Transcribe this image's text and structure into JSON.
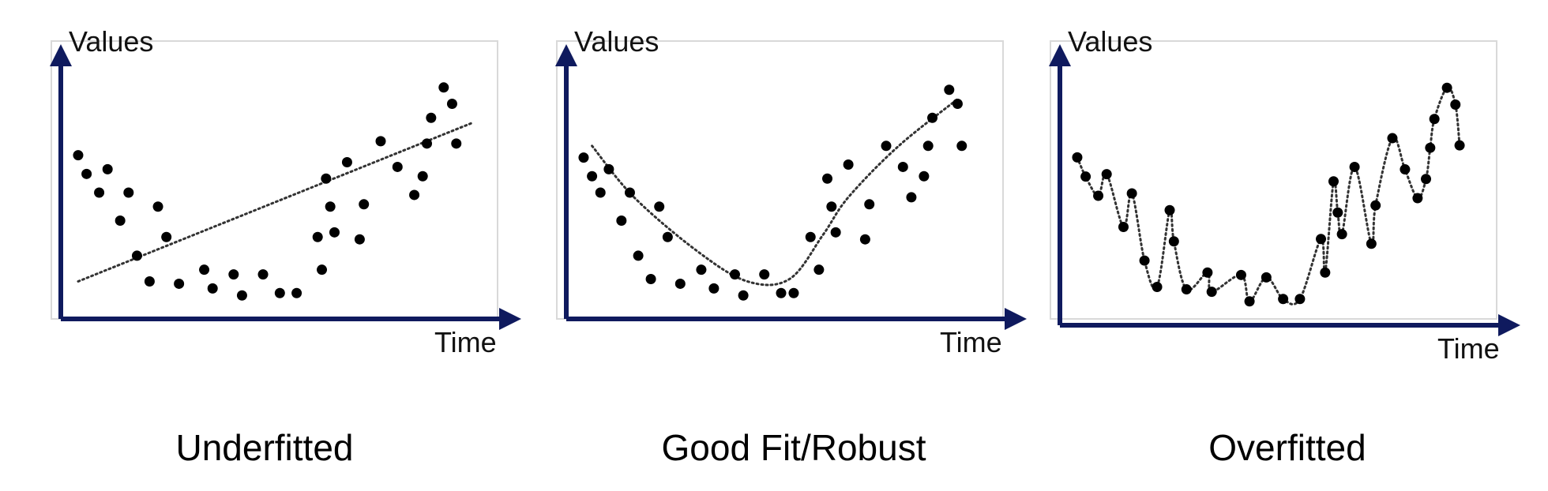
{
  "colors": {
    "axis": "#0f1a5e",
    "frame": "#d9d9d9",
    "points": "#000000",
    "fit": "#333333"
  },
  "chart_data": [
    {
      "type": "scatter",
      "caption": "Underfitted",
      "xlabel": "Time",
      "ylabel": "Values",
      "xlim": [
        0,
        100
      ],
      "ylim": [
        0,
        100
      ],
      "points": [
        [
          3,
          66
        ],
        [
          5,
          58
        ],
        [
          8,
          50
        ],
        [
          10,
          60
        ],
        [
          13,
          38
        ],
        [
          15,
          50
        ],
        [
          17,
          23
        ],
        [
          20,
          12
        ],
        [
          22,
          44
        ],
        [
          24,
          31
        ],
        [
          27,
          11
        ],
        [
          33,
          17
        ],
        [
          35,
          9
        ],
        [
          40,
          15
        ],
        [
          42,
          6
        ],
        [
          47,
          15
        ],
        [
          51,
          7
        ],
        [
          55,
          7
        ],
        [
          60,
          31
        ],
        [
          61,
          17
        ],
        [
          62,
          56
        ],
        [
          63,
          44
        ],
        [
          64,
          33
        ],
        [
          67,
          63
        ],
        [
          70,
          30
        ],
        [
          71,
          45
        ],
        [
          75,
          72
        ],
        [
          79,
          61
        ],
        [
          83,
          49
        ],
        [
          85,
          57
        ],
        [
          86,
          71
        ],
        [
          87,
          82
        ],
        [
          90,
          95
        ],
        [
          92,
          88
        ],
        [
          93,
          71
        ]
      ],
      "fit": {
        "kind": "linear",
        "x": [
          3,
          97
        ],
        "y": [
          12,
          80
        ]
      }
    },
    {
      "type": "scatter",
      "caption": "Good Fit/Robust",
      "xlabel": "Time",
      "ylabel": "Values",
      "xlim": [
        0,
        100
      ],
      "ylim": [
        0,
        100
      ],
      "points": [
        [
          3,
          65
        ],
        [
          5,
          57
        ],
        [
          7,
          50
        ],
        [
          9,
          60
        ],
        [
          12,
          38
        ],
        [
          14,
          50
        ],
        [
          16,
          23
        ],
        [
          19,
          13
        ],
        [
          21,
          44
        ],
        [
          23,
          31
        ],
        [
          26,
          11
        ],
        [
          31,
          17
        ],
        [
          34,
          9
        ],
        [
          39,
          15
        ],
        [
          41,
          6
        ],
        [
          46,
          15
        ],
        [
          50,
          7
        ],
        [
          53,
          7
        ],
        [
          57,
          31
        ],
        [
          59,
          17
        ],
        [
          61,
          56
        ],
        [
          62,
          44
        ],
        [
          63,
          33
        ],
        [
          66,
          62
        ],
        [
          70,
          30
        ],
        [
          71,
          45
        ],
        [
          75,
          70
        ],
        [
          79,
          61
        ],
        [
          81,
          48
        ],
        [
          84,
          57
        ],
        [
          85,
          70
        ],
        [
          86,
          82
        ],
        [
          90,
          94
        ],
        [
          92,
          88
        ],
        [
          93,
          70
        ]
      ],
      "fit": {
        "kind": "smooth",
        "x": [
          5,
          15,
          30,
          42,
          52,
          60,
          66,
          78,
          92
        ],
        "y": [
          70,
          48,
          25,
          12,
          13,
          32,
          48,
          70,
          90
        ]
      }
    },
    {
      "type": "scatter",
      "caption": "Overfitted",
      "xlabel": "Time",
      "ylabel": "Values",
      "xlim": [
        0,
        100
      ],
      "ylim": [
        0,
        100
      ],
      "points": [
        [
          3,
          66
        ],
        [
          5,
          58
        ],
        [
          8,
          50
        ],
        [
          10,
          59
        ],
        [
          14,
          37
        ],
        [
          16,
          51
        ],
        [
          19,
          23
        ],
        [
          22,
          12
        ],
        [
          25,
          44
        ],
        [
          26,
          31
        ],
        [
          29,
          11
        ],
        [
          34,
          18
        ],
        [
          35,
          10
        ],
        [
          42,
          17
        ],
        [
          44,
          6
        ],
        [
          48,
          16
        ],
        [
          52,
          7
        ],
        [
          56,
          7
        ],
        [
          61,
          32
        ],
        [
          62,
          18
        ],
        [
          64,
          56
        ],
        [
          65,
          43
        ],
        [
          66,
          34
        ],
        [
          69,
          62
        ],
        [
          73,
          30
        ],
        [
          74,
          46
        ],
        [
          78,
          74
        ],
        [
          81,
          61
        ],
        [
          84,
          49
        ],
        [
          86,
          57
        ],
        [
          87,
          70
        ],
        [
          88,
          82
        ],
        [
          91,
          95
        ],
        [
          93,
          88
        ],
        [
          94,
          71
        ]
      ],
      "fit": {
        "kind": "interpolate"
      }
    }
  ]
}
